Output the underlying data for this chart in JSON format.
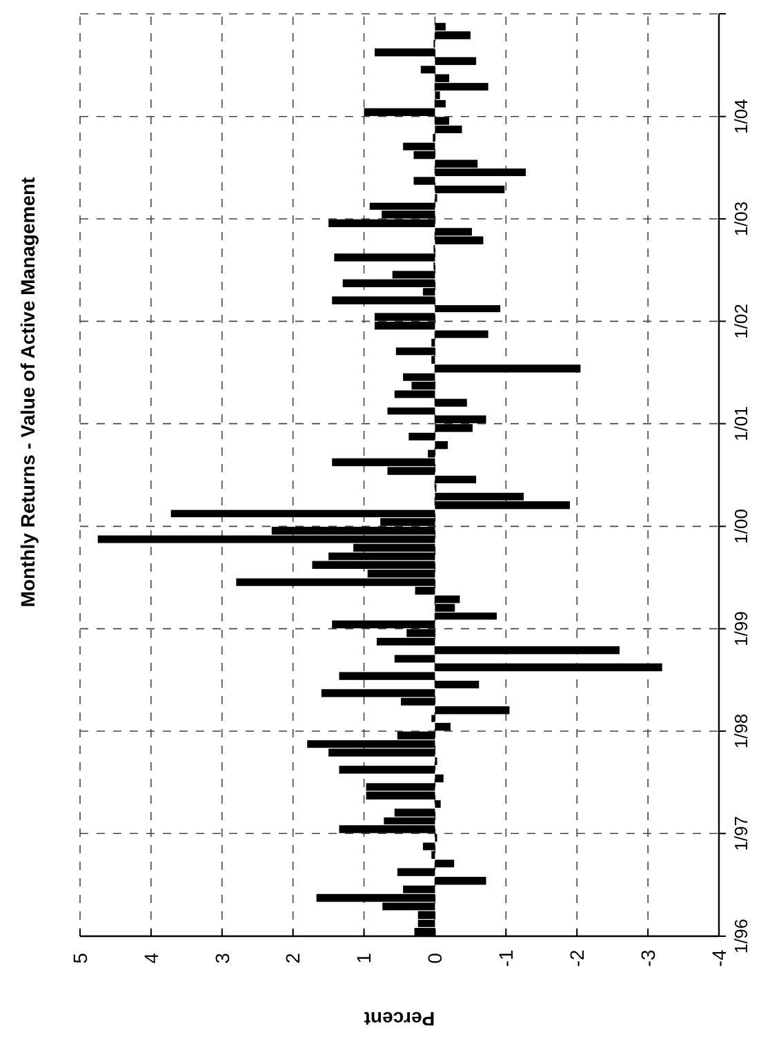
{
  "chart_data": {
    "type": "bar",
    "orientation": "horizontal",
    "title": "Monthly Returns - Value of Active Management",
    "xlabel": "Percent",
    "x": [
      "1996-01",
      "1996-02",
      "1996-03",
      "1996-04",
      "1996-05",
      "1996-06",
      "1996-07",
      "1996-08",
      "1996-09",
      "1996-10",
      "1996-11",
      "1996-12",
      "1997-01",
      "1997-02",
      "1997-03",
      "1997-04",
      "1997-05",
      "1997-06",
      "1997-07",
      "1997-08",
      "1997-09",
      "1997-10",
      "1997-11",
      "1997-12",
      "1998-01",
      "1998-02",
      "1998-03",
      "1998-04",
      "1998-05",
      "1998-06",
      "1998-07",
      "1998-08",
      "1998-09",
      "1998-10",
      "1998-11",
      "1998-12",
      "1999-01",
      "1999-02",
      "1999-03",
      "1999-04",
      "1999-05",
      "1999-06",
      "1999-07",
      "1999-08",
      "1999-09",
      "1999-10",
      "1999-11",
      "1999-12",
      "2000-01",
      "2000-02",
      "2000-03",
      "2000-04",
      "2000-05",
      "2000-06",
      "2000-07",
      "2000-08",
      "2000-09",
      "2000-10",
      "2000-11",
      "2000-12",
      "2001-01",
      "2001-02",
      "2001-03",
      "2001-04",
      "2001-05",
      "2001-06",
      "2001-07",
      "2001-08",
      "2001-09",
      "2001-10",
      "2001-11",
      "2001-12",
      "2002-01",
      "2002-02",
      "2002-03",
      "2002-04",
      "2002-05",
      "2002-06",
      "2002-07",
      "2002-08",
      "2002-09",
      "2002-10",
      "2002-11",
      "2002-12",
      "2003-01",
      "2003-02",
      "2003-03",
      "2003-04",
      "2003-05",
      "2003-06",
      "2003-07",
      "2003-08",
      "2003-09",
      "2003-10",
      "2003-11",
      "2003-12",
      "2004-01",
      "2004-02",
      "2004-03",
      "2004-04",
      "2004-05",
      "2004-06",
      "2004-07",
      "2004-08",
      "2004-09",
      "2004-10",
      "2004-11"
    ],
    "values": [
      0.29,
      0.24,
      0.24,
      0.74,
      1.67,
      0.45,
      -0.72,
      0.53,
      -0.27,
      0.05,
      0.17,
      -0.03,
      1.35,
      0.72,
      0.57,
      -0.08,
      0.97,
      0.97,
      -0.12,
      1.35,
      -0.03,
      1.5,
      1.8,
      0.53,
      -0.22,
      0.05,
      -1.05,
      0.48,
      1.6,
      -0.62,
      1.35,
      -3.2,
      0.57,
      -2.6,
      0.82,
      0.4,
      1.45,
      -0.87,
      -0.28,
      -0.35,
      0.28,
      2.8,
      0.95,
      1.73,
      1.5,
      1.15,
      4.75,
      2.3,
      0.77,
      3.72,
      -1.9,
      -1.25,
      -0.02,
      -0.58,
      0.67,
      1.45,
      0.1,
      -0.18,
      0.37,
      -0.53,
      -0.72,
      0.67,
      -0.45,
      0.57,
      0.33,
      0.45,
      -2.05,
      0.05,
      0.55,
      0.05,
      -0.75,
      0.85,
      0.85,
      -0.92,
      1.45,
      0.17,
      1.3,
      0.6,
      0.02,
      1.42,
      0.02,
      -0.68,
      -0.52,
      1.5,
      0.75,
      0.92,
      -0.03,
      -0.98,
      0.3,
      -1.28,
      -0.6,
      0.3,
      0.45,
      0.03,
      -0.38,
      -0.2,
      1.0,
      -0.15,
      -0.07,
      -0.75,
      -0.2,
      0.2,
      -0.58,
      0.85,
      0.02,
      -0.5,
      -0.15
    ],
    "color": "#000000",
    "ylim": [
      "1996-01",
      "2005-01"
    ],
    "yticks": [
      {
        "value": "1996-01",
        "label": "1/96"
      },
      {
        "value": "1997-01",
        "label": "1/97"
      },
      {
        "value": "1998-01",
        "label": "1/98"
      },
      {
        "value": "1999-01",
        "label": "1/99"
      },
      {
        "value": "2000-01",
        "label": "1/00"
      },
      {
        "value": "2001-01",
        "label": "1/01"
      },
      {
        "value": "2002-01",
        "label": "1/02"
      },
      {
        "value": "2003-01",
        "label": "1/03"
      },
      {
        "value": "2004-01",
        "label": "1/04"
      },
      {
        "value": "2005-01",
        "label": null
      }
    ],
    "xlim": [
      5,
      -4
    ],
    "xticks": [
      5,
      4,
      3,
      2,
      1,
      0,
      -1,
      -2,
      -3,
      -4
    ],
    "grid": true
  }
}
